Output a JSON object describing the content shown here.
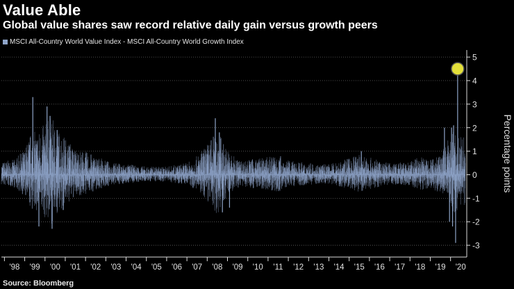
{
  "header": {
    "title": "Value Able",
    "subtitle": "Global value shares saw record relative daily gain versus growth peers"
  },
  "legend": {
    "label": "MSCI All-Country World Value Index - MSCI All-Country World Growth Index",
    "color": "#8ea4c8"
  },
  "footer": {
    "source": "Source: Bloomberg"
  },
  "chart_data": {
    "type": "bar",
    "title": "Value Able",
    "subtitle": "Global value shares saw record relative daily gain versus growth peers",
    "xlabel": "",
    "ylabel": "Percentage points",
    "ylim": [
      -3.5,
      5.3
    ],
    "yticks": [
      5,
      4,
      3,
      2,
      1,
      0,
      -1,
      -2,
      -3
    ],
    "ytick_labels": [
      "5",
      "4",
      "3",
      "2",
      "1",
      "0",
      "-1",
      "-2",
      "-3"
    ],
    "x_range": [
      1997.85,
      2020.8
    ],
    "xtick_labels": [
      "'98",
      "'99",
      "'00",
      "'01",
      "'02",
      "'03",
      "'04",
      "'05",
      "'06",
      "'07",
      "'08",
      "'09",
      "'10",
      "'11",
      "'12",
      "'13",
      "'14",
      "'15",
      "'16",
      "'17",
      "'18",
      "'19",
      "'20"
    ],
    "series_color": "#8ea4c8",
    "grid": true,
    "legend_position": "top-left",
    "highlight": {
      "x": 2020.35,
      "y": 4.5,
      "color": "#e3e03a",
      "note": "record relative daily gain"
    },
    "envelope": {
      "x": [
        1997.85,
        1998.5,
        1999.0,
        1999.3,
        1999.7,
        2000.0,
        2000.3,
        2000.6,
        2001.0,
        2001.5,
        2002.0,
        2002.5,
        2003.0,
        2003.5,
        2004.0,
        2005.0,
        2006.0,
        2007.0,
        2007.5,
        2007.9,
        2008.2,
        2008.5,
        2008.8,
        2009.0,
        2009.3,
        2009.7,
        2010.0,
        2011.0,
        2011.5,
        2012.0,
        2013.0,
        2014.0,
        2015.0,
        2015.5,
        2016.0,
        2016.5,
        2017.0,
        2018.0,
        2018.5,
        2019.0,
        2019.5,
        2019.9,
        2020.05,
        2020.15,
        2020.25,
        2020.4,
        2020.8
      ],
      "amp": [
        0.55,
        0.65,
        1.1,
        1.8,
        1.9,
        2.2,
        2.5,
        2.0,
        1.6,
        1.1,
        1.0,
        0.8,
        0.6,
        0.5,
        0.45,
        0.35,
        0.35,
        0.5,
        0.8,
        1.2,
        1.6,
        2.0,
        1.4,
        1.1,
        0.8,
        0.6,
        0.65,
        0.75,
        0.9,
        0.6,
        0.5,
        0.45,
        0.7,
        0.9,
        0.75,
        0.6,
        0.5,
        0.55,
        0.8,
        0.7,
        0.9,
        1.5,
        1.8,
        2.0,
        2.0,
        1.6,
        1.6
      ]
    },
    "spikes": [
      {
        "x": 1999.4,
        "value": 3.3
      },
      {
        "x": 1999.7,
        "value": -2.2
      },
      {
        "x": 2000.1,
        "value": 2.9
      },
      {
        "x": 2000.25,
        "value": 2.5
      },
      {
        "x": 2000.35,
        "value": -2.3
      },
      {
        "x": 2000.6,
        "value": 1.9
      },
      {
        "x": 2000.9,
        "value": -1.5
      },
      {
        "x": 2001.2,
        "value": 1.2
      },
      {
        "x": 2008.4,
        "value": 2.4
      },
      {
        "x": 2008.6,
        "value": 1.8
      },
      {
        "x": 2008.75,
        "value": -1.6
      },
      {
        "x": 2009.1,
        "value": -1.4
      },
      {
        "x": 2015.6,
        "value": 1.0
      },
      {
        "x": 2019.7,
        "value": 2.0
      },
      {
        "x": 2019.95,
        "value": -2.0
      },
      {
        "x": 2020.05,
        "value": 2.0
      },
      {
        "x": 2020.1,
        "value": -2.2
      },
      {
        "x": 2020.15,
        "value": 2.1
      },
      {
        "x": 2020.25,
        "value": -2.9
      },
      {
        "x": 2020.35,
        "value": 4.5
      }
    ]
  }
}
